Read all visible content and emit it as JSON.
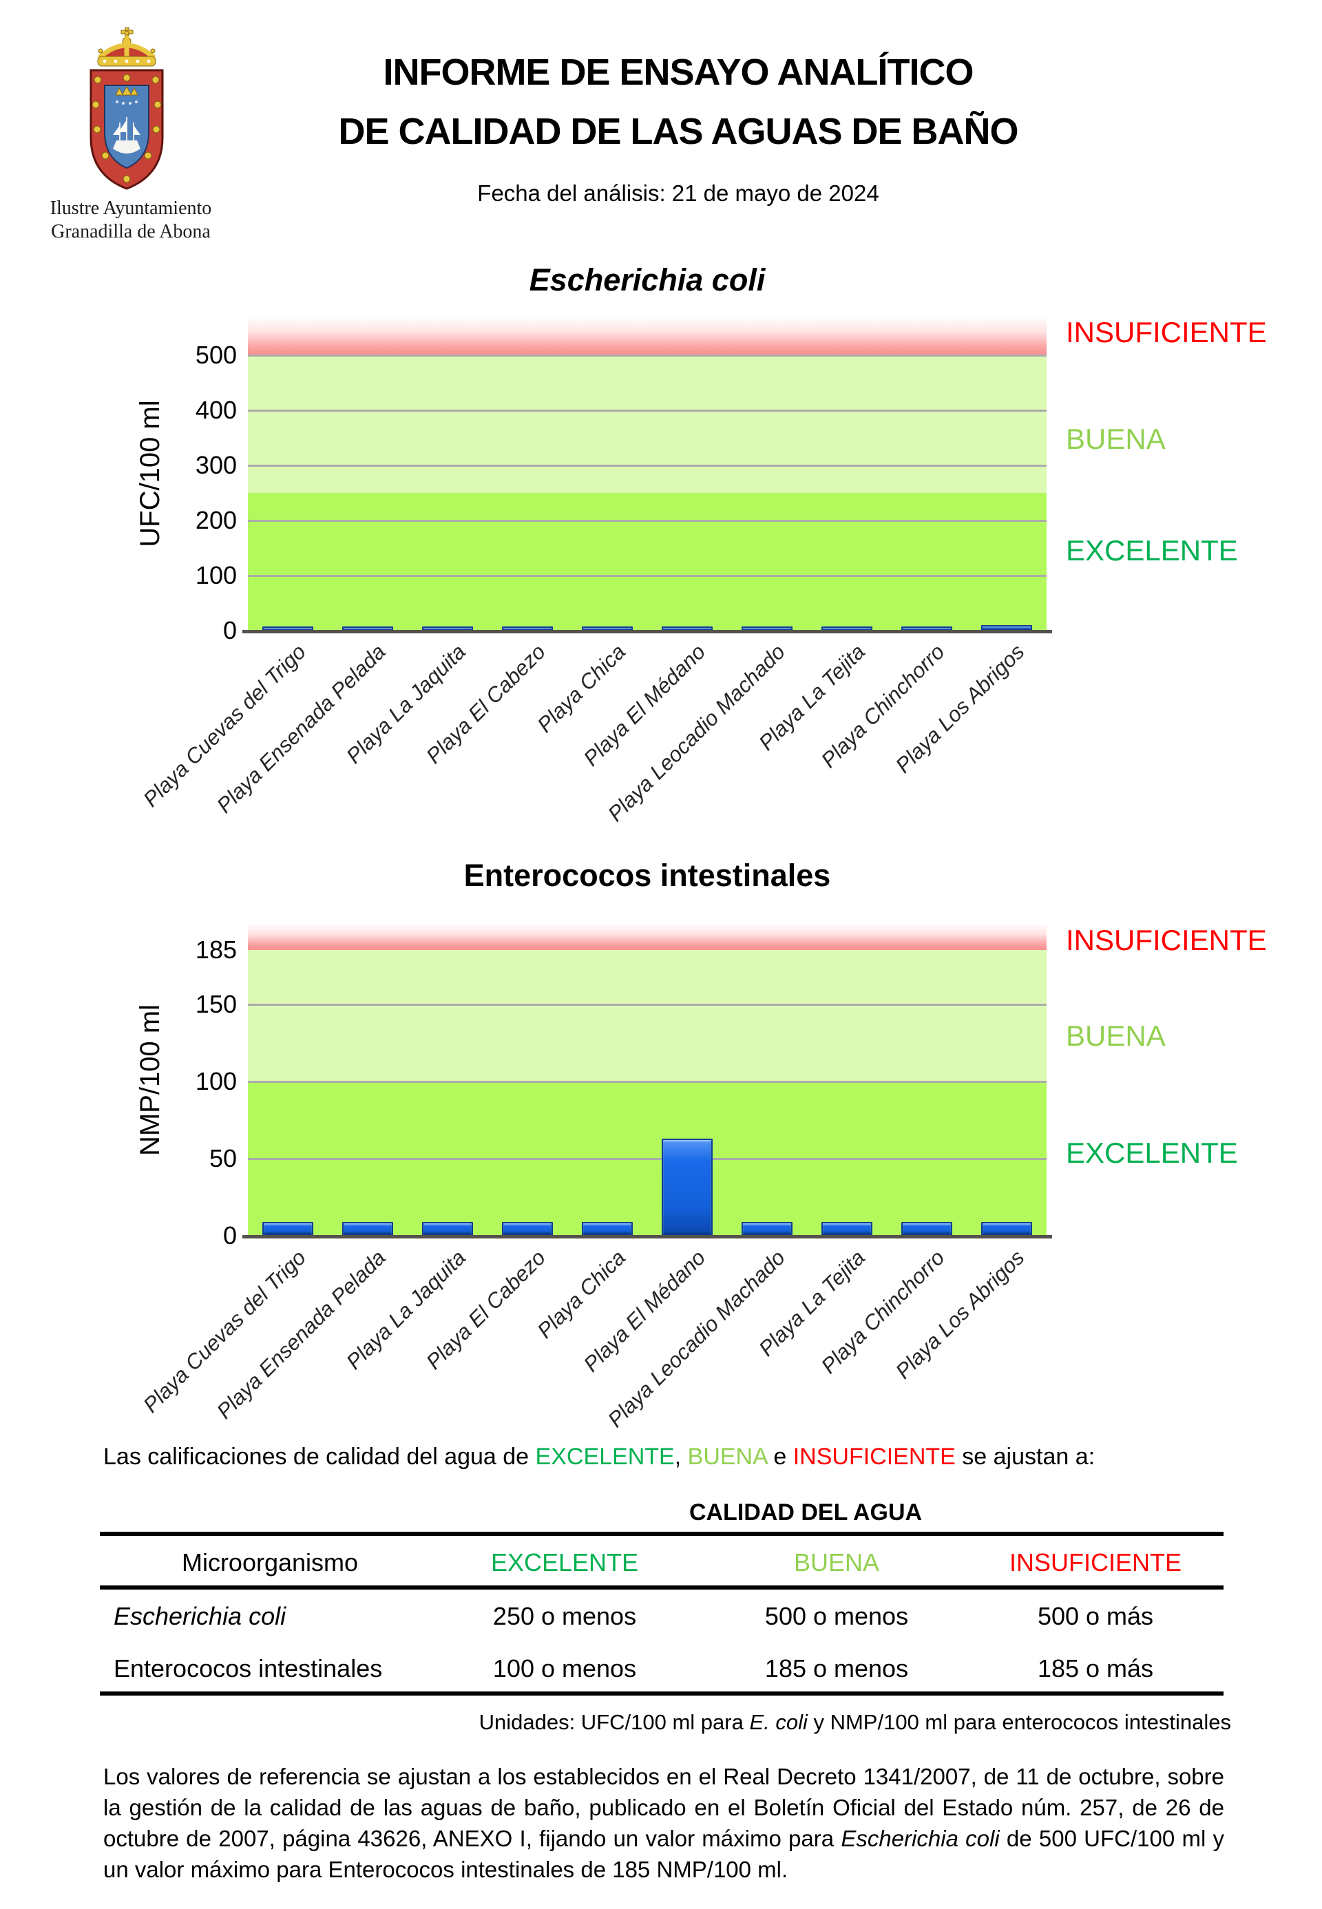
{
  "logo": {
    "line1": "Ilustre Ayuntamiento",
    "line2": "Granadilla de Abona"
  },
  "header": {
    "title_line1": "INFORME DE ENSAYO ANALÍTICO",
    "title_line2": "DE CALIDAD DE LAS AGUAS DE BAÑO",
    "date_line": "Fecha del análisis: 21 de mayo de 2024"
  },
  "colors": {
    "excelente": "#00B050",
    "buena": "#92D050",
    "insuficiente": "#FF0000",
    "bar_blue": "#1565E0",
    "zone_excelente_fill": "#B3F95C",
    "zone_buena_fill": "#DCFAB4",
    "zone_insuficiente_fill": "#FA9090",
    "gridline": "#ABABAB",
    "axis": "#54524A"
  },
  "chart_data": [
    {
      "type": "bar",
      "title": "Escherichia coli",
      "title_italic": true,
      "ylabel": "UFC/100 ml",
      "xlabel": "",
      "categories": [
        "Playa Cuevas del Trigo",
        "Playa Ensenada Pelada",
        "Playa La Jaquita",
        "Playa El Cabezo",
        "Playa Chica",
        "Playa El Médano",
        "Playa Leocadio Machado",
        "Playa La Tejita",
        "Playa Chinchorro",
        "Playa Los Abrigos"
      ],
      "values": [
        8,
        8,
        8,
        8,
        8,
        8,
        8,
        8,
        8,
        10
      ],
      "yticks": [
        0,
        100,
        200,
        300,
        400,
        500
      ],
      "ylim": [
        0,
        570
      ],
      "gridlines": [
        100,
        200,
        300,
        400,
        500
      ],
      "grid": true,
      "legend": false,
      "zones": [
        {
          "label": "EXCELENTE",
          "from": 0,
          "to": 250,
          "fill": "#B3F95C",
          "label_color": "#00B050"
        },
        {
          "label": "BUENA",
          "from": 250,
          "to": 500,
          "fill": "#DCFAB4",
          "label_color": "#92D050"
        },
        {
          "label": "INSUFICIENTE",
          "from": 500,
          "to": 570,
          "fill": "red_gradient",
          "label_color": "#FF0000"
        }
      ]
    },
    {
      "type": "bar",
      "title": "Enterococos intestinales",
      "title_italic": false,
      "ylabel": "NMP/100 ml",
      "xlabel": "",
      "categories": [
        "Playa Cuevas del Trigo",
        "Playa Ensenada Pelada",
        "Playa La Jaquita",
        "Playa El Cabezo",
        "Playa Chica",
        "Playa El Médano",
        "Playa Leocadio Machado",
        "Playa La Tejita",
        "Playa Chinchorro",
        "Playa Los Abrigos"
      ],
      "values": [
        9,
        9,
        9,
        9,
        9,
        63,
        9,
        9,
        9,
        9
      ],
      "yticks": [
        0,
        50,
        100,
        150,
        185
      ],
      "ylim": [
        0,
        202
      ],
      "gridlines": [
        50,
        100,
        150
      ],
      "grid": true,
      "legend": false,
      "zones": [
        {
          "label": "EXCELENTE",
          "from": 0,
          "to": 100,
          "fill": "#B3F95C",
          "label_color": "#00B050"
        },
        {
          "label": "BUENA",
          "from": 100,
          "to": 185,
          "fill": "#DCFAB4",
          "label_color": "#92D050"
        },
        {
          "label": "INSUFICIENTE",
          "from": 185,
          "to": 202,
          "fill": "red_gradient",
          "label_color": "#FF0000"
        }
      ]
    }
  ],
  "qualifications_line": {
    "segments": [
      {
        "t": "Las calificaciones de calidad del agua de "
      },
      {
        "t": "EXCELENTE",
        "c": "excelente"
      },
      {
        "t": ", "
      },
      {
        "t": "BUENA",
        "c": "buena"
      },
      {
        "t": " e "
      },
      {
        "t": "INSUFICIENTE",
        "c": "insuficiente"
      },
      {
        "t": " se ajustan a:"
      }
    ]
  },
  "table": {
    "title": "CALIDAD DEL AGUA",
    "headers": [
      "Microorganismo",
      "EXCELENTE",
      "BUENA",
      "INSUFICIENTE"
    ],
    "header_colors": [
      "#000000",
      "#00B050",
      "#92D050",
      "#FF0000"
    ],
    "rows": [
      {
        "name": "Escherichia coli",
        "name_italic": true,
        "values": [
          "250 o menos",
          "500 o menos",
          "500 o más"
        ]
      },
      {
        "name": "Enterococos intestinales",
        "name_italic": false,
        "values": [
          "100 o menos",
          "185 o menos",
          "185 o más"
        ]
      }
    ]
  },
  "units_line": {
    "segments": [
      {
        "t": "Unidades: UFC/100 ml para "
      },
      {
        "t": "E. coli",
        "i": true
      },
      {
        "t": " y NMP/100 ml para enterococos intestinales"
      }
    ]
  },
  "footer": {
    "segments": [
      {
        "t": "Los valores de referencia se ajustan a los establecidos en el Real Decreto 1341/2007, de 11 de octubre, sobre la gestión de la calidad de las aguas de baño, publicado en el Boletín Oficial del Estado núm. 257, de 26 de octubre de 2007, página 43626, ANEXO I, fijando un valor máximo para "
      },
      {
        "t": "Escherichia coli",
        "i": true
      },
      {
        "t": " de 500 UFC/100 ml y un valor máximo para Enterococos intestinales de 185 NMP/100 ml."
      }
    ]
  }
}
